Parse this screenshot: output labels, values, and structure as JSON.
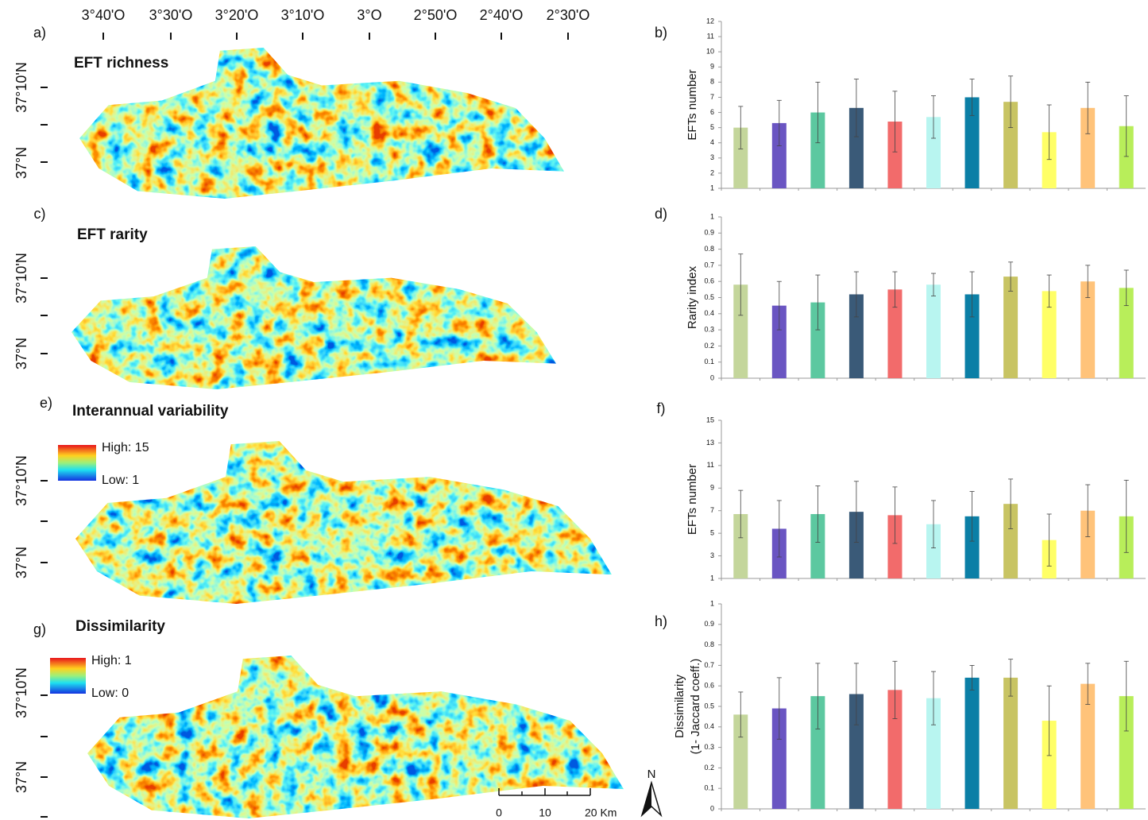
{
  "maps": {
    "x_labels": [
      "3°40'O",
      "3°30'O",
      "3°20'O",
      "3°10'O",
      "3°O",
      "2°50'O",
      "2°40'O",
      "2°30'O"
    ],
    "panels": [
      {
        "letter": "a)",
        "title": "EFT richness",
        "y_labels": [
          "37°10'N",
          "37°N"
        ]
      },
      {
        "letter": "c)",
        "title": "EFT rarity",
        "y_labels": [
          "37°10'N",
          "37°N"
        ]
      },
      {
        "letter": "e)",
        "title": "Interannual variability",
        "y_labels": [
          "37°10'N",
          "37°N"
        ],
        "legend": [
          "High: 15",
          "Low: 1"
        ]
      },
      {
        "letter": "g)",
        "title": "Dissimilarity",
        "y_labels": [
          "37°10'N",
          "37°N"
        ],
        "legend": [
          "High: 1",
          "Low: 0"
        ]
      }
    ],
    "scale_labels": [
      "0",
      "10",
      "20 Km"
    ],
    "north": "N"
  },
  "chart_data": [
    {
      "type": "bar",
      "panel": "b)",
      "ylabel": "EFTs number",
      "categories": [
        null,
        null,
        null,
        null,
        null,
        null,
        null,
        null,
        null,
        null,
        null
      ],
      "values": [
        5.0,
        5.3,
        6.0,
        6.3,
        5.4,
        5.7,
        7.0,
        6.7,
        4.7,
        6.3,
        5.1
      ],
      "errors": [
        1.4,
        1.5,
        2.0,
        1.9,
        2.0,
        1.4,
        1.2,
        1.7,
        1.8,
        1.7,
        2.0
      ],
      "colors": [
        "#c4d69b",
        "#6a55c2",
        "#5cc8a0",
        "#3a5a78",
        "#f26b6b",
        "#b8f5f0",
        "#0b7fa6",
        "#c8c463",
        "#ffff66",
        "#ffc37a",
        "#b8ee5a"
      ],
      "ylim": [
        1,
        12
      ],
      "yticks": [
        1,
        2,
        3,
        4,
        5,
        6,
        7,
        8,
        9,
        10,
        11,
        12
      ]
    },
    {
      "type": "bar",
      "panel": "d)",
      "ylabel": "Rarity index",
      "categories": [
        null,
        null,
        null,
        null,
        null,
        null,
        null,
        null,
        null,
        null,
        null
      ],
      "values": [
        0.58,
        0.45,
        0.47,
        0.52,
        0.55,
        0.58,
        0.52,
        0.63,
        0.54,
        0.6,
        0.56
      ],
      "errors": [
        0.19,
        0.15,
        0.17,
        0.14,
        0.11,
        0.07,
        0.14,
        0.09,
        0.1,
        0.1,
        0.11
      ],
      "colors": [
        "#c4d69b",
        "#6a55c2",
        "#5cc8a0",
        "#3a5a78",
        "#f26b6b",
        "#b8f5f0",
        "#0b7fa6",
        "#c8c463",
        "#ffff66",
        "#ffc37a",
        "#b8ee5a"
      ],
      "ylim": [
        0,
        1
      ],
      "yticks": [
        0,
        0.1,
        0.2,
        0.3,
        0.4,
        0.5,
        0.6,
        0.7,
        0.8,
        0.9,
        1
      ]
    },
    {
      "type": "bar",
      "panel": "f)",
      "ylabel": "EFTs number",
      "categories": [
        null,
        null,
        null,
        null,
        null,
        null,
        null,
        null,
        null,
        null,
        null
      ],
      "values": [
        6.7,
        5.4,
        6.7,
        6.9,
        6.6,
        5.8,
        6.5,
        7.6,
        4.4,
        7.0,
        6.5
      ],
      "errors": [
        2.1,
        2.5,
        2.5,
        2.7,
        2.5,
        2.1,
        2.2,
        2.2,
        2.3,
        2.3,
        3.2
      ],
      "colors": [
        "#c4d69b",
        "#6a55c2",
        "#5cc8a0",
        "#3a5a78",
        "#f26b6b",
        "#b8f5f0",
        "#0b7fa6",
        "#c8c463",
        "#ffff66",
        "#ffc37a",
        "#b8ee5a"
      ],
      "ylim": [
        1,
        15
      ],
      "yticks": [
        1,
        3,
        5,
        7,
        9,
        11,
        13,
        15
      ]
    },
    {
      "type": "bar",
      "panel": "h)",
      "ylabel": [
        "Dissimilarity",
        "(1- Jaccard coeff.)"
      ],
      "categories": [
        null,
        null,
        null,
        null,
        null,
        null,
        null,
        null,
        null,
        null,
        null
      ],
      "values": [
        0.46,
        0.49,
        0.55,
        0.56,
        0.58,
        0.54,
        0.64,
        0.64,
        0.43,
        0.61,
        0.55
      ],
      "errors": [
        0.11,
        0.15,
        0.16,
        0.15,
        0.14,
        0.13,
        0.06,
        0.09,
        0.17,
        0.1,
        0.17
      ],
      "colors": [
        "#c4d69b",
        "#6a55c2",
        "#5cc8a0",
        "#3a5a78",
        "#f26b6b",
        "#b8f5f0",
        "#0b7fa6",
        "#c8c463",
        "#ffff66",
        "#ffc37a",
        "#b8ee5a"
      ],
      "ylim": [
        0,
        1
      ],
      "yticks": [
        0,
        0.1,
        0.2,
        0.3,
        0.4,
        0.5,
        0.6,
        0.7,
        0.8,
        0.9,
        1
      ]
    }
  ]
}
